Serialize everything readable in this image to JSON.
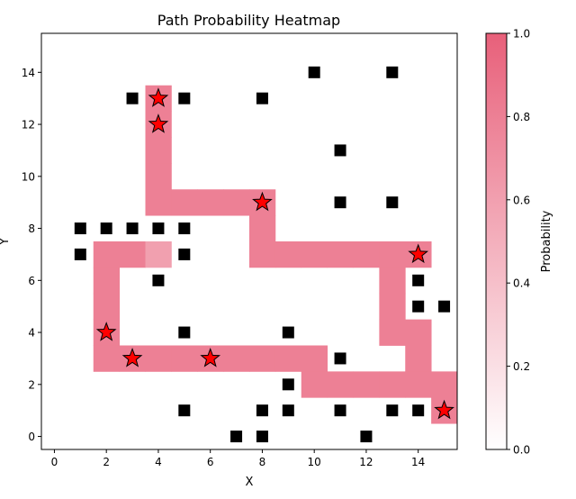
{
  "chart_data": {
    "type": "heatmap",
    "title": "Path Probability Heatmap",
    "xlabel": "X",
    "ylabel": "Y",
    "xlim": [
      -0.5,
      15.5
    ],
    "ylim": [
      -0.5,
      15.5
    ],
    "x_ticks": [
      0,
      2,
      4,
      6,
      8,
      10,
      12,
      14
    ],
    "y_ticks": [
      0,
      2,
      4,
      6,
      8,
      10,
      12,
      14
    ],
    "x_tick_labels": [
      "0",
      "2",
      "4",
      "6",
      "8",
      "10",
      "12",
      "14"
    ],
    "y_tick_labels": [
      "0",
      "2",
      "4",
      "6",
      "8",
      "10",
      "12",
      "14"
    ],
    "colorbar": {
      "label": "Probability",
      "range": [
        0,
        1
      ],
      "ticks": [
        0.0,
        0.2,
        0.4,
        0.6,
        0.8,
        1.0
      ],
      "tick_labels": [
        "0.0",
        "0.2",
        "0.4",
        "0.6",
        "0.8",
        "1.0"
      ],
      "color_low": "#ffffff",
      "color_high": "#e8607a"
    },
    "grid": false,
    "path_cells": [
      {
        "x": 4,
        "y": 13,
        "p": 0.8
      },
      {
        "x": 4,
        "y": 12,
        "p": 0.8
      },
      {
        "x": 4,
        "y": 11,
        "p": 0.8
      },
      {
        "x": 4,
        "y": 10,
        "p": 0.8
      },
      {
        "x": 4,
        "y": 9,
        "p": 0.8
      },
      {
        "x": 5,
        "y": 9,
        "p": 0.8
      },
      {
        "x": 6,
        "y": 9,
        "p": 0.8
      },
      {
        "x": 7,
        "y": 9,
        "p": 0.8
      },
      {
        "x": 8,
        "y": 9,
        "p": 0.8
      },
      {
        "x": 8,
        "y": 8,
        "p": 0.8
      },
      {
        "x": 8,
        "y": 7,
        "p": 0.8
      },
      {
        "x": 9,
        "y": 7,
        "p": 0.8
      },
      {
        "x": 10,
        "y": 7,
        "p": 0.8
      },
      {
        "x": 11,
        "y": 7,
        "p": 0.8
      },
      {
        "x": 12,
        "y": 7,
        "p": 0.8
      },
      {
        "x": 13,
        "y": 7,
        "p": 0.8
      },
      {
        "x": 14,
        "y": 7,
        "p": 0.8
      },
      {
        "x": 13,
        "y": 6,
        "p": 0.8
      },
      {
        "x": 13,
        "y": 5,
        "p": 0.8
      },
      {
        "x": 13,
        "y": 4,
        "p": 0.8
      },
      {
        "x": 14,
        "y": 4,
        "p": 0.8
      },
      {
        "x": 14,
        "y": 3,
        "p": 0.8
      },
      {
        "x": 14,
        "y": 2,
        "p": 0.8
      },
      {
        "x": 15,
        "y": 2,
        "p": 0.8
      },
      {
        "x": 15,
        "y": 1,
        "p": 0.8
      },
      {
        "x": 10,
        "y": 2,
        "p": 0.8
      },
      {
        "x": 11,
        "y": 2,
        "p": 0.8
      },
      {
        "x": 12,
        "y": 2,
        "p": 0.8
      },
      {
        "x": 13,
        "y": 2,
        "p": 0.8
      },
      {
        "x": 2,
        "y": 3,
        "p": 0.8
      },
      {
        "x": 3,
        "y": 3,
        "p": 0.8
      },
      {
        "x": 4,
        "y": 3,
        "p": 0.8
      },
      {
        "x": 5,
        "y": 3,
        "p": 0.8
      },
      {
        "x": 6,
        "y": 3,
        "p": 0.8
      },
      {
        "x": 7,
        "y": 3,
        "p": 0.8
      },
      {
        "x": 8,
        "y": 3,
        "p": 0.8
      },
      {
        "x": 9,
        "y": 3,
        "p": 0.8
      },
      {
        "x": 10,
        "y": 3,
        "p": 0.8
      },
      {
        "x": 2,
        "y": 4,
        "p": 0.8
      },
      {
        "x": 2,
        "y": 5,
        "p": 0.8
      },
      {
        "x": 2,
        "y": 6,
        "p": 0.8
      },
      {
        "x": 2,
        "y": 7,
        "p": 0.8
      },
      {
        "x": 3,
        "y": 7,
        "p": 0.8
      },
      {
        "x": 4,
        "y": 7,
        "p": 0.6
      }
    ],
    "obstacles": [
      [
        10,
        14
      ],
      [
        13,
        14
      ],
      [
        3,
        13
      ],
      [
        5,
        13
      ],
      [
        8,
        13
      ],
      [
        11,
        11
      ],
      [
        11,
        9
      ],
      [
        13,
        9
      ],
      [
        1,
        8
      ],
      [
        2,
        8
      ],
      [
        3,
        8
      ],
      [
        4,
        8
      ],
      [
        5,
        8
      ],
      [
        1,
        7
      ],
      [
        5,
        7
      ],
      [
        4,
        6
      ],
      [
        14,
        6
      ],
      [
        14,
        5
      ],
      [
        15,
        5
      ],
      [
        5,
        4
      ],
      [
        9,
        4
      ],
      [
        11,
        3
      ],
      [
        9,
        2
      ],
      [
        5,
        1
      ],
      [
        8,
        1
      ],
      [
        9,
        1
      ],
      [
        11,
        1
      ],
      [
        13,
        1
      ],
      [
        14,
        1
      ],
      [
        7,
        0
      ],
      [
        8,
        0
      ],
      [
        12,
        0
      ]
    ],
    "waypoints": [
      [
        4,
        13
      ],
      [
        4,
        12
      ],
      [
        8,
        9
      ],
      [
        14,
        7
      ],
      [
        2,
        4
      ],
      [
        3,
        3
      ],
      [
        6,
        3
      ],
      [
        15,
        1
      ]
    ],
    "obstacle_color": "#000000",
    "waypoint_color": "#ff0000"
  }
}
